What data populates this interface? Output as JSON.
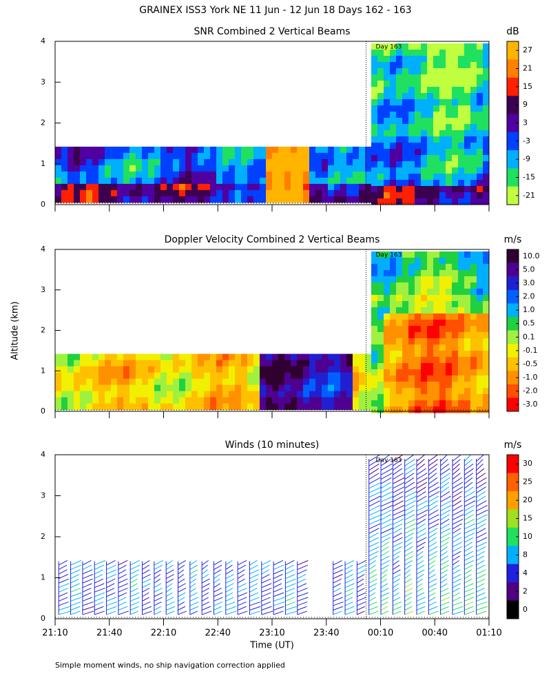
{
  "title": "GRAINEX ISS3 York NE  11 Jun - 12 Jun 18 Days 162 - 163",
  "y_label": "Altitude (km)",
  "x_label": "Time (UT)",
  "footnote": "Simple moment winds, no ship navigation correction applied",
  "chart_data": [
    {
      "type": "contour",
      "title": "SNR Combined 2 Vertical Beams",
      "xlim": [
        0,
        240
      ],
      "xticks": [
        0,
        30,
        60,
        90,
        120,
        150,
        180,
        210,
        240
      ],
      "ylim": [
        0,
        4
      ],
      "yticks": [
        0,
        1,
        2,
        3,
        4
      ],
      "day_marker": {
        "label": "Day 163",
        "x": 172
      },
      "colorbar": {
        "unit": "dB",
        "colors": [
          "#ffb400",
          "#ff8000",
          "#ff2000",
          "#3c0050",
          "#5000a0",
          "#0040ff",
          "#00b0ff",
          "#20e060",
          "#c0ff40"
        ],
        "ticks": [
          27,
          21,
          15,
          9,
          3,
          -3,
          -9,
          -15,
          -21
        ]
      }
    },
    {
      "type": "contour",
      "title": "Doppler Velocity Combined 2 Vertical Beams",
      "xlim": [
        0,
        240
      ],
      "xticks": [
        0,
        30,
        60,
        90,
        120,
        150,
        180,
        210,
        240
      ],
      "ylim": [
        0,
        4
      ],
      "yticks": [
        0,
        1,
        2,
        3,
        4
      ],
      "day_marker": {
        "label": "Day 163",
        "x": 172
      },
      "colorbar": {
        "unit": "m/s",
        "colors": [
          "#300030",
          "#500090",
          "#2020d0",
          "#0060ff",
          "#00b0ff",
          "#20d040",
          "#a0f040",
          "#f0f000",
          "#ffc000",
          "#ff9000",
          "#ff5000",
          "#ff0000"
        ],
        "ticks": [
          {
            "value": 10,
            "label": "10.0"
          },
          {
            "value": 5,
            "label": "5.0"
          },
          {
            "value": 3,
            "label": "3.0"
          },
          {
            "value": 2,
            "label": "2.0"
          },
          {
            "value": 1,
            "label": "1.0"
          },
          {
            "value": 0.5,
            "label": "0.5"
          },
          {
            "value": 0.1,
            "label": "0.1"
          },
          {
            "value": -0.1,
            "label": "-0.1"
          },
          {
            "value": -0.5,
            "label": "-0.5"
          },
          {
            "value": -1,
            "label": "-1.0"
          },
          {
            "value": -2,
            "label": "-2.0"
          },
          {
            "value": -3,
            "label": "-3.0"
          }
        ]
      }
    },
    {
      "type": "barbs",
      "title": "Winds (10 minutes)",
      "xlim": [
        0,
        240
      ],
      "xticks": [
        {
          "value": 0,
          "label": "21:10"
        },
        {
          "value": 30,
          "label": "21:40"
        },
        {
          "value": 60,
          "label": "22:10"
        },
        {
          "value": 90,
          "label": "22:40"
        },
        {
          "value": 120,
          "label": "23:10"
        },
        {
          "value": 150,
          "label": "23:40"
        },
        {
          "value": 180,
          "label": "00:10"
        },
        {
          "value": 210,
          "label": "00:40"
        },
        {
          "value": 240,
          "label": "01:10"
        }
      ],
      "ylim": [
        0,
        4
      ],
      "yticks": [
        0,
        1,
        2,
        3,
        4
      ],
      "day_marker": {
        "label": "Day 163",
        "x": 172
      },
      "colorbar": {
        "unit": "m/s",
        "colors": [
          "#ff0000",
          "#ff6000",
          "#ffa000",
          "#a0e020",
          "#20e060",
          "#00b0ff",
          "#2020e0",
          "#500080",
          "#000000"
        ],
        "ticks": [
          30,
          25,
          20,
          15,
          10,
          8,
          4,
          2,
          0
        ]
      }
    }
  ]
}
